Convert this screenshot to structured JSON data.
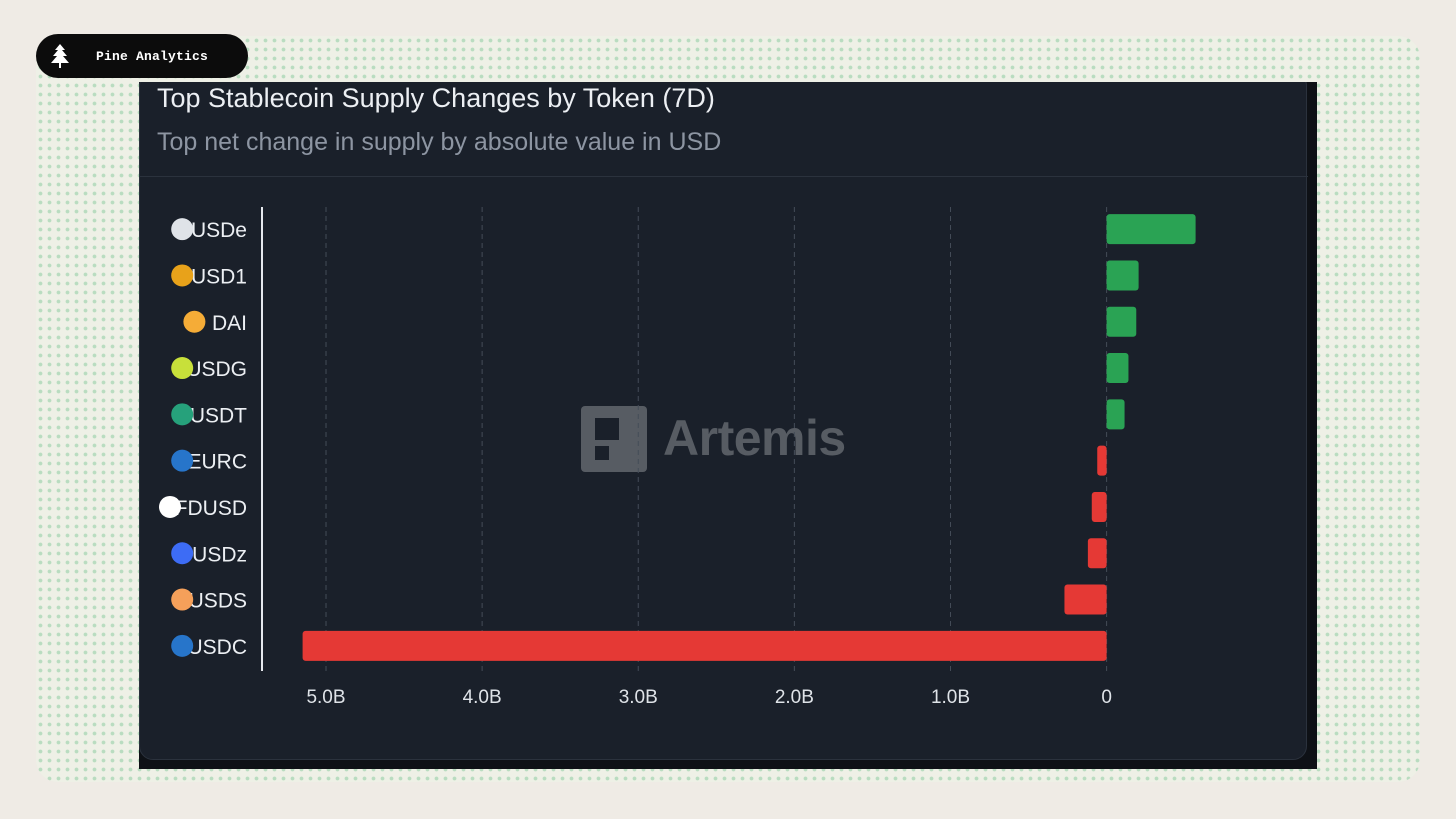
{
  "brand": {
    "name": "Pine Analytics",
    "icon": "pine-tree-icon"
  },
  "watermark": {
    "text": "Artemis",
    "icon": "artemis-logo-icon"
  },
  "chart_data": {
    "type": "bar",
    "orientation": "horizontal",
    "title": "Top Stablecoin Supply Changes by Token (7D)",
    "subtitle": "Top net change in supply by absolute value in USD",
    "xlabel": "",
    "ylabel": "",
    "unit": "USD",
    "categories": [
      "USDe",
      "USD1",
      "DAI",
      "USDG",
      "USDT",
      "EURC",
      "FDUSD",
      "USDz",
      "USDS",
      "USDC"
    ],
    "values": [
      570000000,
      205000000,
      190000000,
      140000000,
      115000000,
      -60000000,
      -95000000,
      -120000000,
      -270000000,
      -5150000000
    ],
    "icons": [
      {
        "name": "usde-icon",
        "color": "#dfe3e8"
      },
      {
        "name": "usd1-icon",
        "color": "#e8a21a"
      },
      {
        "name": "dai-icon",
        "color": "#f5ac37"
      },
      {
        "name": "usdg-icon",
        "color": "#c8e03a"
      },
      {
        "name": "usdt-icon",
        "color": "#26a17b"
      },
      {
        "name": "eurc-icon",
        "color": "#2775ca"
      },
      {
        "name": "fdusd-icon",
        "color": "#ffffff"
      },
      {
        "name": "usdz-icon",
        "color": "#3d6cf5"
      },
      {
        "name": "usds-icon",
        "color": "#f5a05a"
      },
      {
        "name": "usdc-icon",
        "color": "#2775ca"
      }
    ],
    "xticks": [
      {
        "value": -5000000000,
        "label": "5.0B"
      },
      {
        "value": -4000000000,
        "label": "4.0B"
      },
      {
        "value": -3000000000,
        "label": "3.0B"
      },
      {
        "value": -2000000000,
        "label": "2.0B"
      },
      {
        "value": -1000000000,
        "label": "1.0B"
      },
      {
        "value": 0,
        "label": "0"
      }
    ],
    "xlim": [
      -5410000000,
      1290000000
    ],
    "grid": true,
    "legend": "none",
    "colors": {
      "positive": "#2aa354",
      "negative": "#e53935"
    }
  }
}
